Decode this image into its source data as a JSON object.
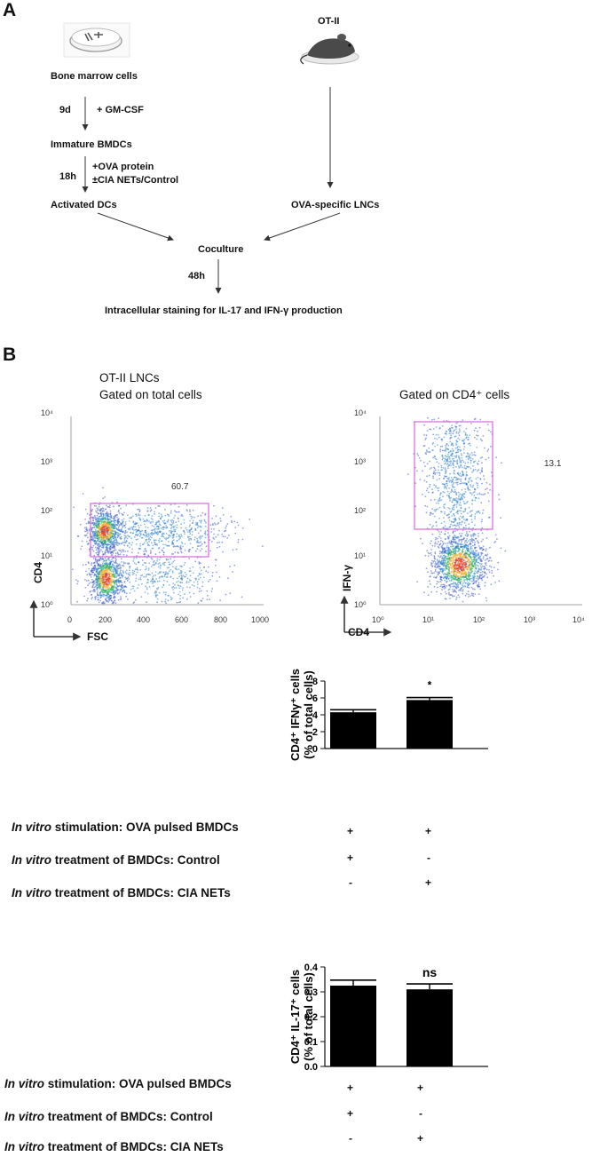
{
  "panel_a": {
    "label": "A",
    "bone_marrow": "Bone marrow cells",
    "ot2": "OT-II",
    "step1_time": "9d",
    "step1_treat": "+ GM-CSF",
    "immature": "Immature BMDCs",
    "step2_time": "18h",
    "step2_treat1": "+OVA protein",
    "step2_treat2": "±CIA NETs/Control",
    "activated": "Activated DCs",
    "ova_lnc": "OVA-specific LNCs",
    "coculture": "Coculture",
    "step3_time": "48h",
    "final": "Intracellular staining for IL-17 and IFN-γ production"
  },
  "panel_b": {
    "label": "B",
    "flow1": {
      "title1": "OT-II LNCs",
      "title2": "Gated on total cells",
      "gate_value": "60.7",
      "xlabel": "FSC",
      "ylabel": "CD4",
      "xticks": [
        "0",
        "200",
        "400",
        "600",
        "800",
        "1000"
      ],
      "yticks": [
        "10⁰",
        "10¹",
        "10²",
        "10³",
        "10⁴"
      ]
    },
    "flow2": {
      "title": "Gated on CD4⁺ cells",
      "gate_value": "13.1",
      "xlabel": "CD4",
      "ylabel": "IFN-γ",
      "xticks": [
        "10⁰",
        "10¹",
        "10²",
        "10³",
        "10⁴"
      ],
      "yticks": [
        "10⁰",
        "10¹",
        "10²",
        "10³",
        "10⁴"
      ]
    }
  },
  "chart_data": [
    {
      "type": "bar",
      "ylabel": "CD4⁺ IFNγ⁺ cells (% of total cells)",
      "ylim": [
        0,
        8
      ],
      "yticks": [
        "0",
        "2",
        "4",
        "6",
        "8"
      ],
      "categories": [
        "Control",
        "CIA NETs"
      ],
      "values": [
        4.3,
        5.75
      ],
      "errors": [
        0.3,
        0.3
      ],
      "annotations": [
        "",
        "*"
      ]
    },
    {
      "type": "bar",
      "ylabel": "CD4⁺ IL-17⁺ cells (% of total cells)",
      "ylim": [
        0,
        0.4
      ],
      "yticks": [
        "0.0",
        "0.1",
        "0.2",
        "0.3",
        "0.4"
      ],
      "categories": [
        "Control",
        "CIA NETs"
      ],
      "values": [
        0.325,
        0.31
      ],
      "errors": [
        0.022,
        0.022
      ],
      "annotations": [
        "",
        "ns"
      ]
    }
  ],
  "table": {
    "rows": [
      {
        "ital": "In vitro",
        "rest": " stimulation: OVA pulsed BMDCs",
        "c1": "+",
        "c2": "+"
      },
      {
        "ital": "In vitro",
        "rest": " treatment of BMDCs: Control",
        "c1": "+",
        "c2": "-"
      },
      {
        "ital": "In vitro",
        "rest": " treatment of BMDCs: CIA NETs",
        "c1": "-",
        "c2": "+"
      }
    ]
  },
  "colors": {
    "gate": "#d868d8",
    "bar": "#000000"
  },
  "icons": [
    "petri-dish-icon",
    "mouse-icon"
  ]
}
